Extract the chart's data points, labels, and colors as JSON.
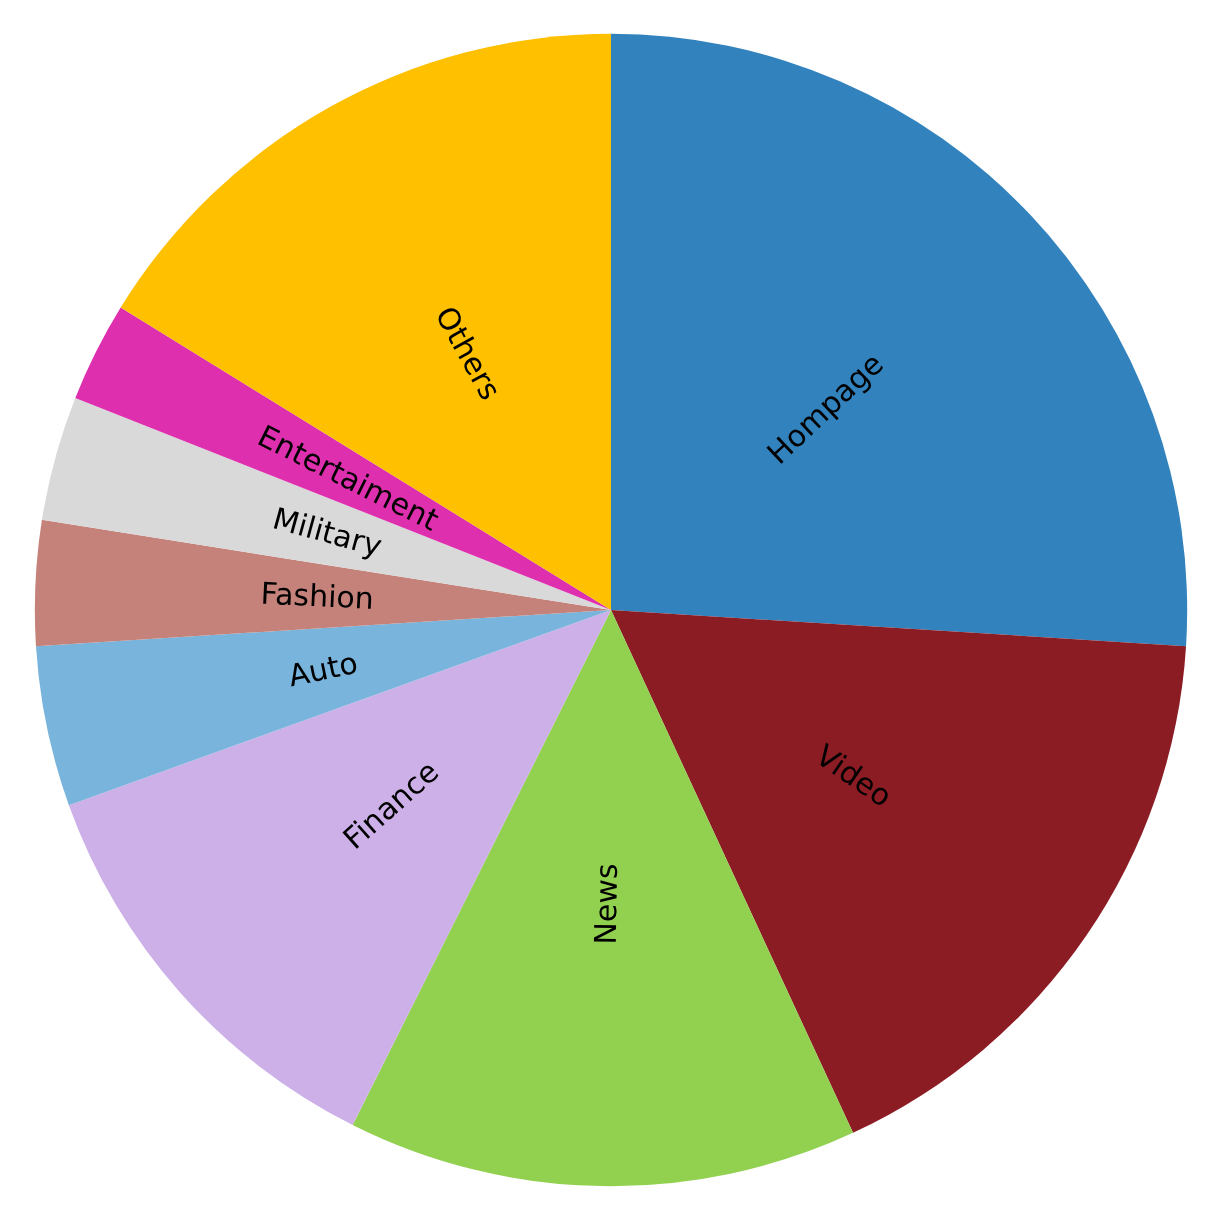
{
  "chart_data": {
    "type": "pie",
    "categories": [
      "Hompage",
      "Video",
      "News",
      "Finance",
      "Auto",
      "Fashion",
      "Military",
      "Entertaiment",
      "Others"
    ],
    "values": [
      26,
      17.1,
      14.3,
      12.1,
      4.5,
      3.5,
      3.5,
      2.8,
      16.2
    ],
    "colors": [
      "#3182bd",
      "#8c1c24",
      "#92d050",
      "#cdb0e8",
      "#78b4dc",
      "#c5827a",
      "#d9d9d9",
      "#de2fae",
      "#ffc000"
    ],
    "legend": false
  }
}
